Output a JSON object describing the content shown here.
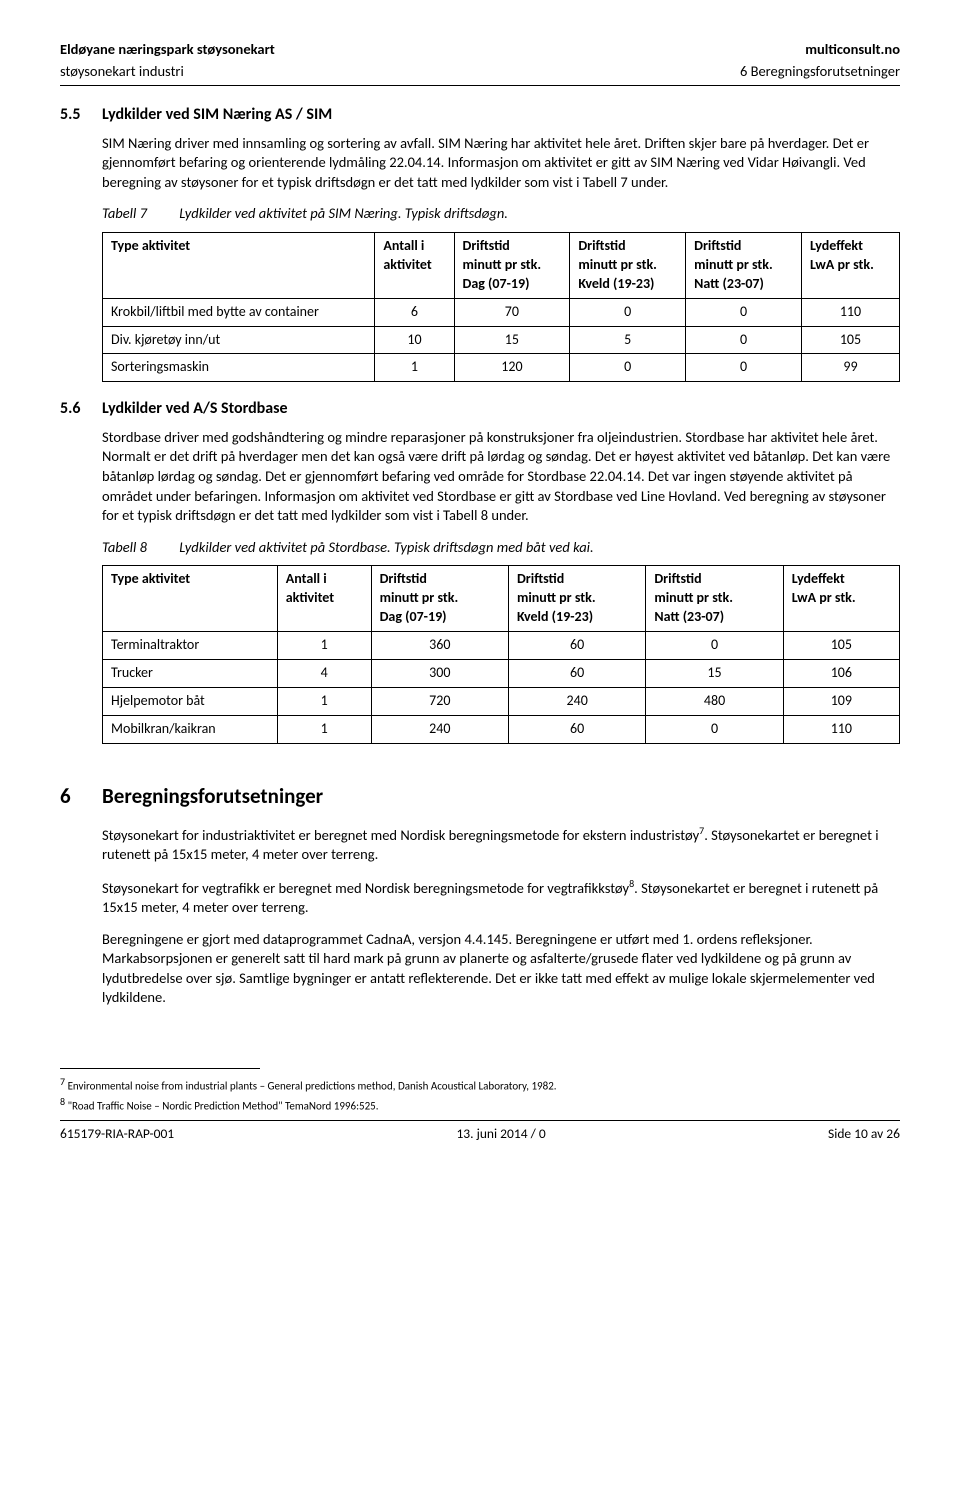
{
  "header": {
    "title_left": "Eldøyane næringspark støysonekart",
    "title_right": "multiconsult.no",
    "sub_left": "støysonekart industri",
    "sub_right": "6 Beregningsforutsetninger"
  },
  "s55": {
    "num": "5.5",
    "title": "Lydkilder ved SIM Næring AS / SIM",
    "p1": "SIM Næring driver med innsamling og sortering av avfall. SIM Næring har aktivitet hele året. Driften skjer bare på hverdager. Det er gjennomført befaring og orienterende lydmåling 22.04.14. Informasjon om aktivitet er gitt av SIM Næring ved Vidar Høivangli. Ved beregning av støysoner for et typisk driftsdøgn er det tatt med lydkilder som vist i Tabell 7 under."
  },
  "t7": {
    "label": "Tabell 7",
    "caption": "Lydkilder ved aktivitet på SIM Næring. Typisk driftsdøgn.",
    "h1": "Type aktivitet",
    "h2a": "Antall i",
    "h2b": "aktivitet",
    "h3a": "Driftstid",
    "h3b": "minutt pr stk.",
    "h3c": "Dag (07-19)",
    "h4a": "Driftstid",
    "h4b": "minutt pr stk.",
    "h4c": "Kveld (19-23)",
    "h5a": "Driftstid",
    "h5b": "minutt pr stk.",
    "h5c": "Natt (23-07)",
    "h6a": "Lydeffekt",
    "h6b": "LwA pr stk.",
    "r1c1": "Krokbil/liftbil med bytte av container",
    "r1c2": "6",
    "r1c3": "70",
    "r1c4": "0",
    "r1c5": "0",
    "r1c6": "110",
    "r2c1": "Div. kjøretøy inn/ut",
    "r2c2": "10",
    "r2c3": "15",
    "r2c4": "5",
    "r2c5": "0",
    "r2c6": "105",
    "r3c1": "Sorteringsmaskin",
    "r3c2": "1",
    "r3c3": "120",
    "r3c4": "0",
    "r3c5": "0",
    "r3c6": "99"
  },
  "s56": {
    "num": "5.6",
    "title": "Lydkilder ved A/S Stordbase",
    "p1": "Stordbase driver med godshåndtering og mindre reparasjoner på konstruksjoner fra oljeindustrien. Stordbase har aktivitet hele året. Normalt er det drift på hverdager men det kan også være drift på lørdag og søndag. Det er høyest aktivitet ved båtanløp. Det kan være båtanløp lørdag og søndag. Det er gjennomført befaring ved område for Stordbase 22.04.14. Det var ingen støyende aktivitet på området under befaringen. Informasjon om aktivitet ved Stordbase er gitt av Stordbase ved Line Hovland. Ved beregning av støysoner for et typisk driftsdøgn er det tatt med lydkilder som vist i Tabell 8 under."
  },
  "t8": {
    "label": "Tabell 8",
    "caption": "Lydkilder ved aktivitet på Stordbase. Typisk driftsdøgn med båt ved kai.",
    "r1c1": "Terminaltraktor",
    "r1c2": "1",
    "r1c3": "360",
    "r1c4": "60",
    "r1c5": "0",
    "r1c6": "105",
    "r2c1": "Trucker",
    "r2c2": "4",
    "r2c3": "300",
    "r2c4": "60",
    "r2c5": "15",
    "r2c6": "106",
    "r3c1": "Hjelpemotor båt",
    "r3c2": "1",
    "r3c3": "720",
    "r3c4": "240",
    "r3c5": "480",
    "r3c6": "109",
    "r4c1": "Mobilkran/kaikran",
    "r4c2": "1",
    "r4c3": "240",
    "r4c4": "60",
    "r4c5": "0",
    "r4c6": "110"
  },
  "s6": {
    "num": "6",
    "title": "Beregningsforutsetninger",
    "p1a": "Støysonekart for industriaktivitet er beregnet med Nordisk beregningsmetode for ekstern industristøy",
    "p1b": ". Støysonekartet er beregnet i rutenett på 15x15 meter, 4 meter over terreng.",
    "p2a": "Støysonekart for vegtrafikk er beregnet med Nordisk beregningsmetode for vegtrafikkstøy",
    "p2b": ". Støysonekartet er beregnet i rutenett på 15x15 meter, 4 meter over terreng.",
    "p3": "Beregningene er gjort med dataprogrammet CadnaA, versjon 4.4.145. Beregningene er utført med 1. ordens refleksjoner. Markabsorpsjonen er generelt satt til hard mark på grunn av planerte og asfalterte/grusede flater ved lydkildene og på grunn av lydutbredelse over sjø. Samtlige bygninger er antatt reflekterende. Det er ikke tatt med effekt av mulige lokale skjermelementer ved lydkildene.",
    "fn7": "7",
    "fn8": "8"
  },
  "footnotes": {
    "f7": " Environmental noise from industrial plants – General predictions method, Danish Acoustical Laboratory, 1982.",
    "f8": " \"Road Traffic Noise – Nordic Prediction Method\" TemaNord 1996:525."
  },
  "footer": {
    "left": "615179-RIA-RAP-001",
    "center": "13. juni 2014 / 0",
    "right": "Side 10 av 26"
  }
}
